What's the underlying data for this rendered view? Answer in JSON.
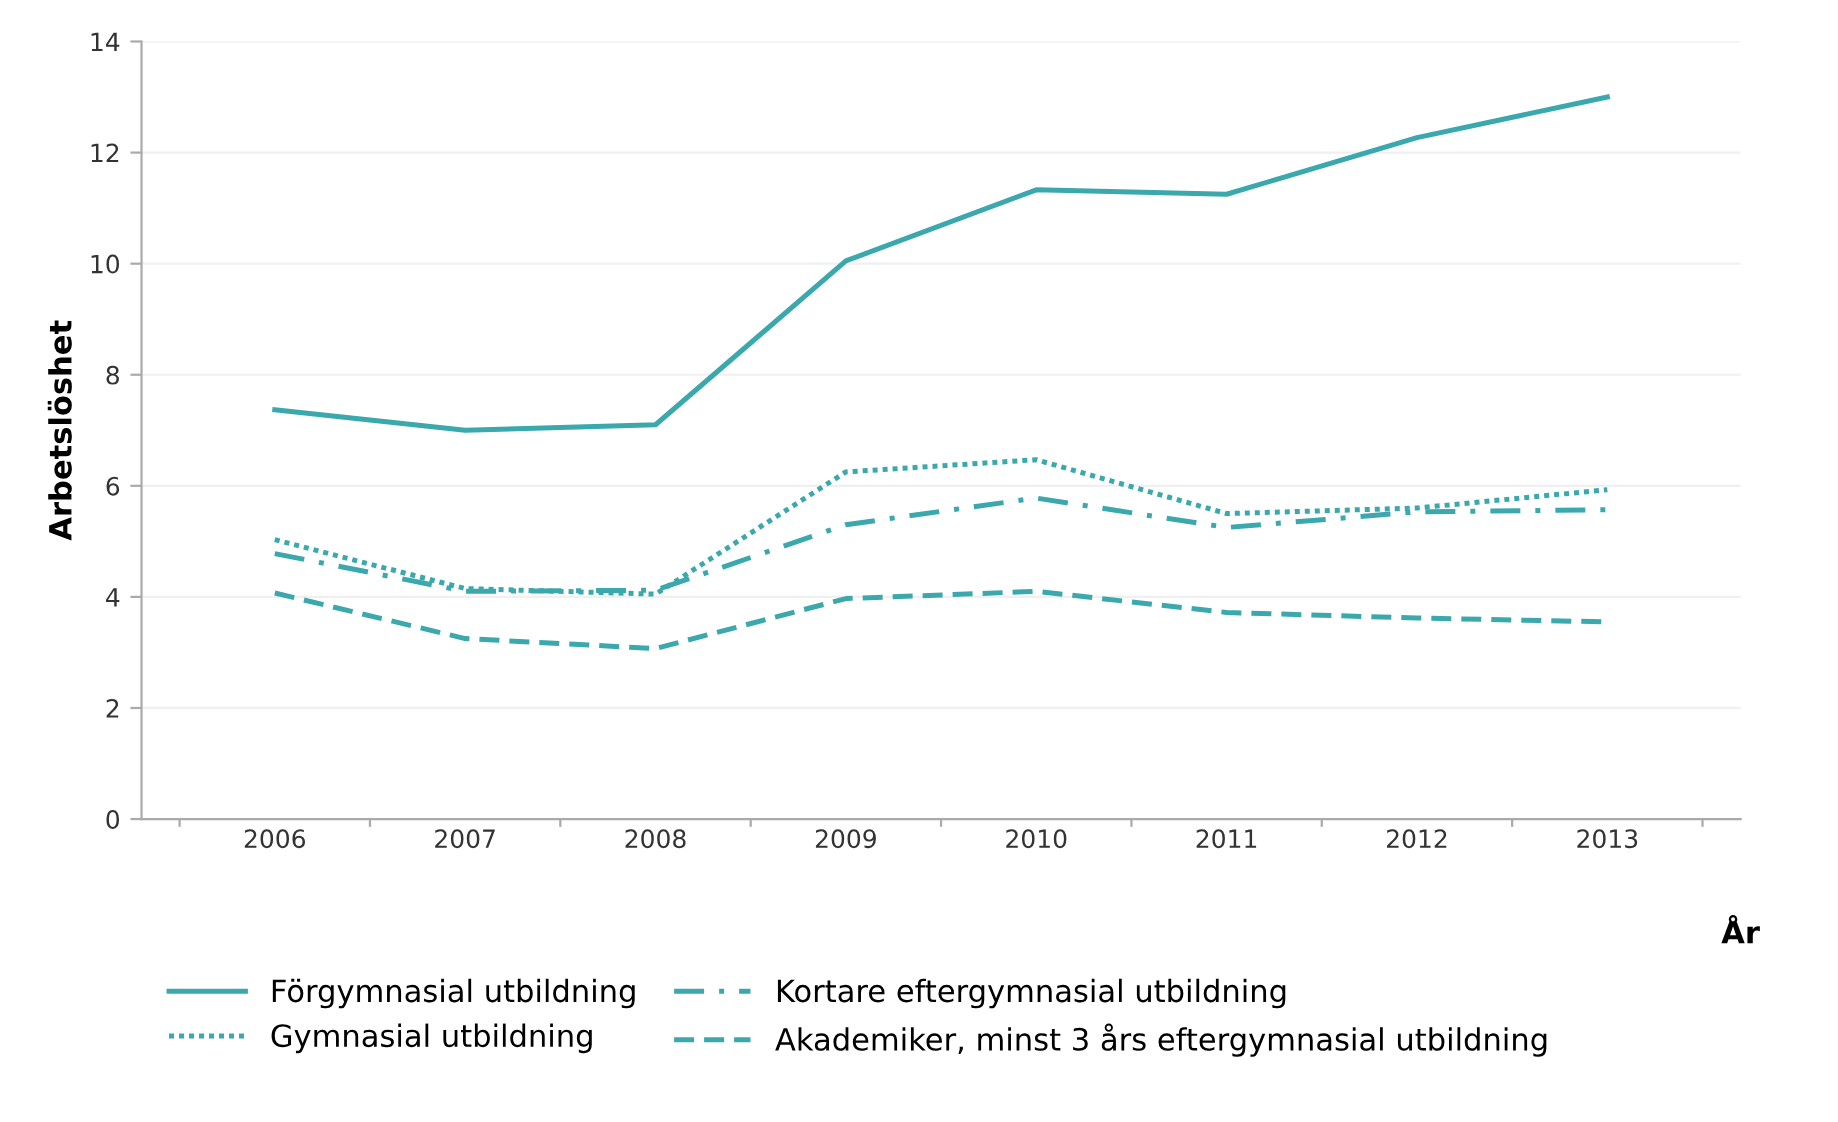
{
  "chart_data": {
    "type": "line",
    "xlabel": "År",
    "ylabel": "Arbetslöshet",
    "categories": [
      "2006",
      "2007",
      "2008",
      "2009",
      "2010",
      "2011",
      "2012",
      "2013"
    ],
    "series": [
      {
        "name": "Förgymnasial utbildning",
        "color": "#3aa8ad",
        "line_style": "solid",
        "values": [
          7.37,
          7.0,
          7.1,
          10.05,
          11.33,
          11.25,
          12.27,
          13.0
        ]
      },
      {
        "name": "Gymnasial utbildning",
        "color": "#3aa8ad",
        "line_style": "dotted",
        "values": [
          5.03,
          4.15,
          4.05,
          6.25,
          6.47,
          5.5,
          5.6,
          5.93
        ]
      },
      {
        "name": "Kortare eftergymnasial utbildning",
        "color": "#3aa8ad",
        "line_style": "dashdot",
        "values": [
          4.78,
          4.1,
          4.12,
          5.3,
          5.78,
          5.25,
          5.53,
          5.57
        ]
      },
      {
        "name": "Akademiker, minst 3 års eftergymnasial utbildning",
        "color": "#3aa8ad",
        "line_style": "dashed",
        "values": [
          4.07,
          3.25,
          3.07,
          3.97,
          4.1,
          3.72,
          3.62,
          3.55
        ]
      }
    ],
    "ylim": [
      0,
      14
    ],
    "yticks": [
      0,
      2,
      4,
      6,
      8,
      10,
      12,
      14
    ],
    "grid": "y",
    "legend": "bottom",
    "marker": "none"
  }
}
